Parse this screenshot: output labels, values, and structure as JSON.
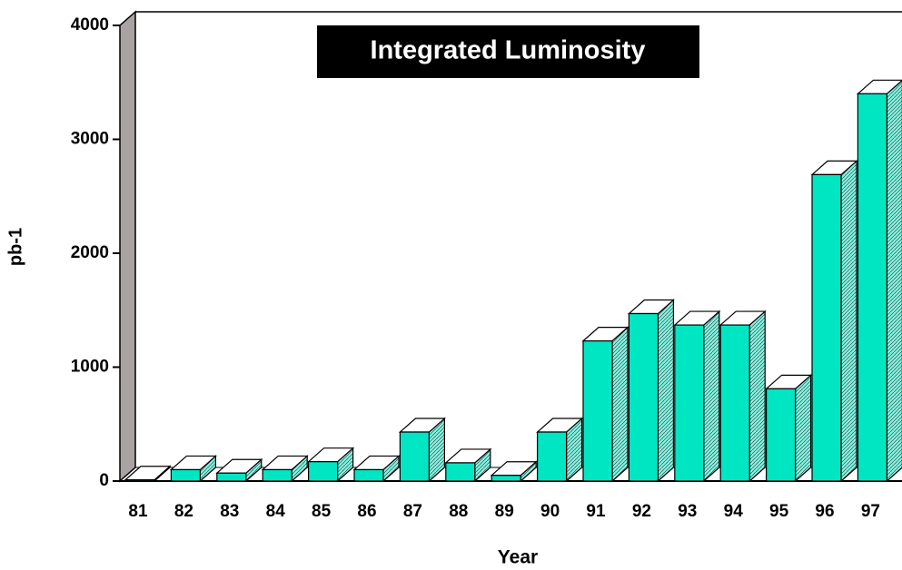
{
  "chart_data": {
    "type": "bar3d",
    "title": "Integrated Luminosity",
    "x_label": "Year",
    "y_label": "pb-1",
    "categories": [
      "81",
      "82",
      "83",
      "84",
      "85",
      "86",
      "87",
      "88",
      "89",
      "90",
      "91",
      "92",
      "93",
      "94",
      "95",
      "96",
      "97"
    ],
    "values": [
      10,
      100,
      70,
      100,
      170,
      100,
      430,
      160,
      50,
      430,
      1230,
      1470,
      1370,
      1370,
      810,
      2690,
      3400
    ],
    "color": "#00e6c3",
    "side_color": "#7ff2df",
    "top_color": "#ffffff",
    "wall_color": "#a9a3a3",
    "ylim": [
      0,
      4000
    ],
    "yticks": [
      0,
      1000,
      2000,
      3000,
      4000
    ],
    "grid": false
  }
}
